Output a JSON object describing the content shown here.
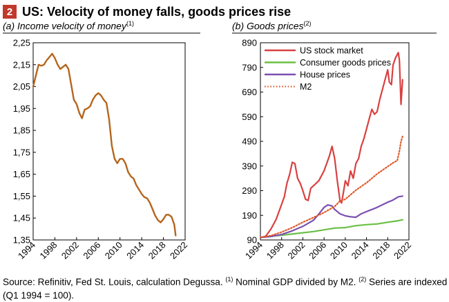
{
  "header": {
    "badge": "2",
    "title": "US: Velocity of money falls, goods prices rise"
  },
  "panels": {
    "a": {
      "subtitle": "(a) Income velocity of money",
      "note": "(1)"
    },
    "b": {
      "subtitle": "(b) Goods prices",
      "note": "(2)"
    }
  },
  "footer": {
    "text1": "Source: Refinitiv, Fed St. Louis, calculation Degussa. ",
    "note1": "(1)",
    "text2": " Nominal GDP divided by M2. ",
    "note2": "(2)",
    "text3": " Series are indexed (Q1 1994 = 100)."
  },
  "colors": {
    "velocity": "#b5651d",
    "stock": "#d94040",
    "consumer": "#6abf45",
    "house": "#7b4fb0",
    "m2": "#e05a2b",
    "badge": "#c0392b"
  },
  "chart_data": [
    {
      "type": "line",
      "title": "(a) Income velocity of money",
      "xlim": [
        1994,
        2022
      ],
      "ylim": [
        1.35,
        2.25
      ],
      "xticks": [
        "1994",
        "1998",
        "2002",
        "2006",
        "2010",
        "2014",
        "2018",
        "2022"
      ],
      "yticks": [
        "1,35",
        "1,45",
        "1,55",
        "1,65",
        "1,75",
        "1,85",
        "1,95",
        "2,05",
        "2,15",
        "2,25"
      ],
      "series": [
        {
          "x": [
            1994,
            1994.5,
            1995,
            1995.5,
            1996,
            1996.5,
            1997,
            1997.5,
            1998,
            1998.5,
            1999,
            1999.5,
            2000,
            2000.5,
            2001,
            2001.5,
            2002,
            2002.5,
            2003,
            2003.5,
            2004,
            2004.5,
            2005,
            2005.5,
            2006,
            2006.5,
            2007,
            2007.5,
            2008,
            2008.5,
            2009,
            2009.5,
            2010,
            2010.5,
            2011,
            2011.5,
            2012,
            2012.5,
            2013,
            2013.5,
            2014,
            2014.5,
            2015,
            2015.5,
            2016,
            2016.5,
            2017,
            2017.5,
            2018,
            2018.5,
            2019,
            2019.5,
            2020,
            2020.25
          ],
          "values": [
            2.05,
            2.1,
            2.15,
            2.145,
            2.15,
            2.17,
            2.185,
            2.2,
            2.18,
            2.15,
            2.13,
            2.14,
            2.15,
            2.13,
            2.06,
            1.99,
            1.97,
            1.93,
            1.905,
            1.945,
            1.95,
            1.96,
            1.99,
            2.01,
            2.02,
            2.01,
            1.99,
            1.975,
            1.9,
            1.78,
            1.72,
            1.7,
            1.72,
            1.72,
            1.7,
            1.66,
            1.64,
            1.63,
            1.6,
            1.58,
            1.56,
            1.545,
            1.54,
            1.52,
            1.49,
            1.46,
            1.44,
            1.43,
            1.445,
            1.465,
            1.465,
            1.455,
            1.42,
            1.37
          ]
        }
      ]
    },
    {
      "type": "line",
      "title": "(b) Goods prices",
      "xlim": [
        1994,
        2022
      ],
      "ylim": [
        90,
        890
      ],
      "xticks": [
        "1994",
        "1998",
        "2002",
        "2006",
        "2010",
        "2014",
        "2018",
        "2022"
      ],
      "yticks": [
        "90",
        "190",
        "290",
        "390",
        "490",
        "590",
        "690",
        "790",
        "890"
      ],
      "legend_position": "top-left",
      "series": [
        {
          "name": "US stock market",
          "x": [
            1994,
            1995,
            1996,
            1997,
            1998,
            1998.5,
            1999,
            1999.5,
            2000,
            2000.5,
            2001,
            2001.5,
            2002,
            2002.5,
            2003,
            2003.5,
            2004,
            2005,
            2006,
            2007,
            2007.5,
            2008,
            2008.5,
            2009,
            2009.3,
            2009.7,
            2010,
            2010.5,
            2011,
            2011.5,
            2012,
            2012.5,
            2013,
            2013.5,
            2014,
            2014.5,
            2015,
            2015.5,
            2016,
            2016.5,
            2017,
            2017.5,
            2018,
            2018.3,
            2018.7,
            2019,
            2019.5,
            2020,
            2020.2,
            2020.5,
            2020.8
          ],
          "values": [
            100,
            105,
            135,
            175,
            235,
            265,
            320,
            355,
            405,
            400,
            340,
            320,
            290,
            255,
            250,
            300,
            310,
            330,
            370,
            430,
            470,
            420,
            330,
            250,
            240,
            290,
            330,
            310,
            370,
            340,
            400,
            420,
            470,
            500,
            540,
            580,
            620,
            600,
            610,
            660,
            700,
            740,
            780,
            730,
            720,
            800,
            830,
            850,
            820,
            640,
            740
          ]
        },
        {
          "name": "Consumer goods prices",
          "x": [
            1994,
            1996,
            1998,
            2000,
            2002,
            2004,
            2006,
            2008,
            2010,
            2012,
            2014,
            2016,
            2018,
            2020,
            2020.8
          ],
          "values": [
            100,
            105,
            109,
            114,
            119,
            124,
            131,
            138,
            140,
            148,
            152,
            155,
            162,
            168,
            172
          ]
        },
        {
          "name": "House prices",
          "x": [
            1994,
            1996,
            1998,
            2000,
            2002,
            2004,
            2005,
            2006,
            2006.7,
            2007.5,
            2008,
            2009,
            2010,
            2011,
            2012,
            2013,
            2014,
            2016,
            2018,
            2019,
            2020,
            2020.8
          ],
          "values": [
            100,
            104,
            112,
            127,
            145,
            170,
            195,
            222,
            232,
            228,
            214,
            196,
            188,
            184,
            182,
            196,
            205,
            222,
            243,
            252,
            265,
            268
          ]
        },
        {
          "name": "M2",
          "x": [
            1994,
            1996,
            1998,
            2000,
            2002,
            2004,
            2006,
            2008,
            2009,
            2010,
            2012,
            2014,
            2016,
            2018,
            2019,
            2019.8,
            2020.2,
            2020.5,
            2020.8
          ],
          "values": [
            100,
            108,
            122,
            140,
            162,
            181,
            201,
            226,
            248,
            255,
            292,
            322,
            358,
            388,
            403,
            412,
            450,
            490,
            510
          ]
        }
      ]
    }
  ]
}
